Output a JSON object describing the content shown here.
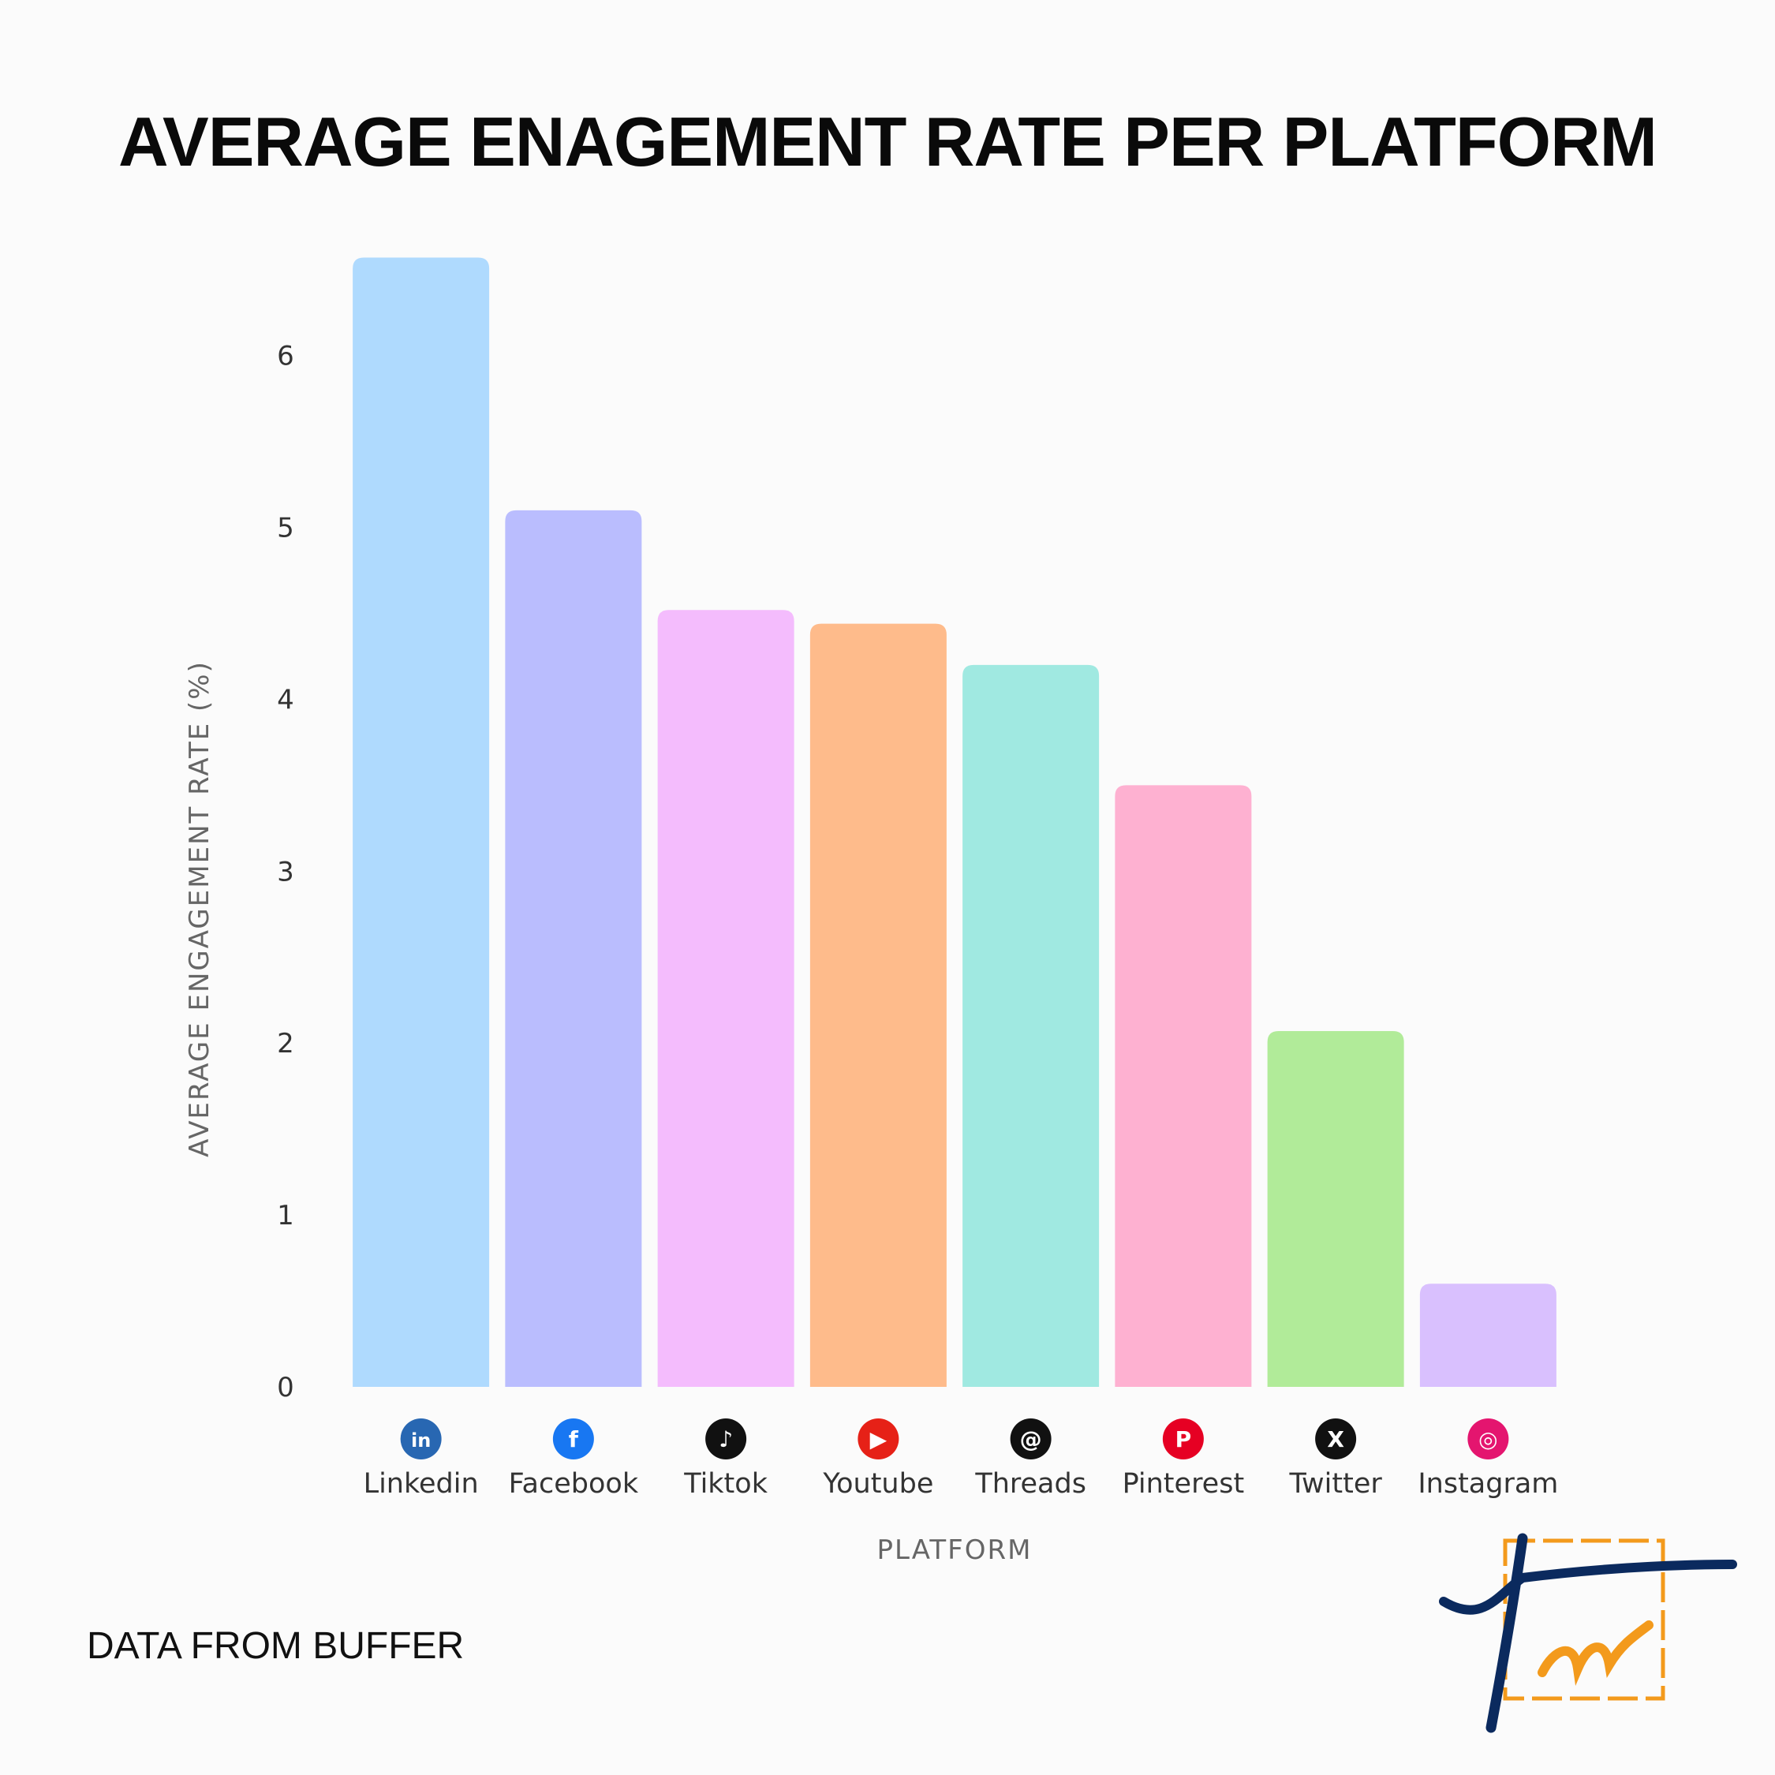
{
  "chart_data": {
    "type": "bar",
    "title": "AVERAGE ENAGEMENT RATE PER PLATFORM",
    "xlabel": "PLATFORM",
    "ylabel": "AVERAGE ENGAGEMENT RATE (%)",
    "ylim": [
      0,
      6.6
    ],
    "yticks": [
      0,
      1,
      2,
      3,
      4,
      5,
      6
    ],
    "grid": false,
    "categories": [
      "Linkedin",
      "Facebook",
      "Tiktok",
      "Youtube",
      "Threads",
      "Pinterest",
      "Twitter",
      "Instagram"
    ],
    "values": [
      6.57,
      5.1,
      4.52,
      4.44,
      4.2,
      3.5,
      2.07,
      0.6
    ],
    "bar_colors": [
      "#afdafe",
      "#babdfe",
      "#f4bcfd",
      "#febb8b",
      "#a0e9e1",
      "#feb1d1",
      "#b1eb99",
      "#d9c0fe"
    ],
    "icons": [
      {
        "name": "linkedin-icon",
        "color": "#2867b2",
        "glyph": "in"
      },
      {
        "name": "facebook-icon",
        "color": "#1877f2",
        "glyph": "f"
      },
      {
        "name": "tiktok-icon",
        "color": "#111111",
        "glyph": "♪"
      },
      {
        "name": "youtube-icon",
        "color": "#e62117",
        "glyph": "▶"
      },
      {
        "name": "threads-icon",
        "color": "#111111",
        "glyph": "@"
      },
      {
        "name": "pinterest-icon",
        "color": "#e60023",
        "glyph": "P"
      },
      {
        "name": "x-icon",
        "color": "#111111",
        "glyph": "X"
      },
      {
        "name": "instagram-icon",
        "color": "#e4156f",
        "glyph": "◎"
      }
    ]
  },
  "footnote": "DATA FROM BUFFER",
  "logo_text": "Tw"
}
